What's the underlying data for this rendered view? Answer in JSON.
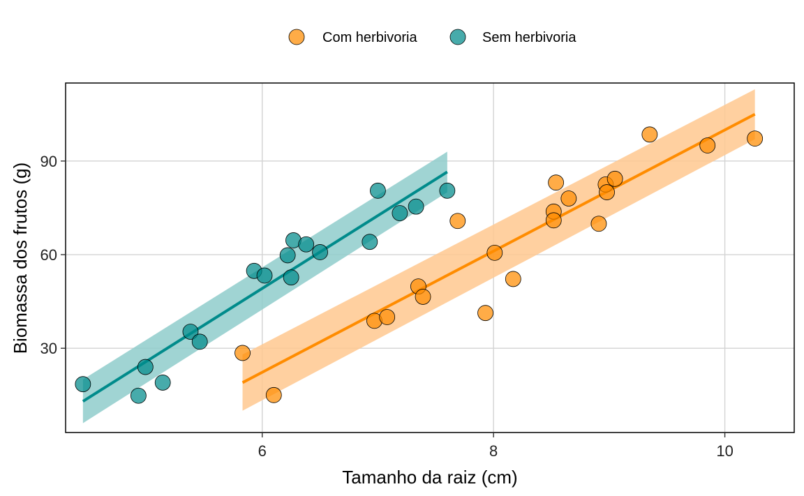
{
  "chart_data": {
    "type": "scatter",
    "title": "",
    "xlabel": "Tamanho da raiz (cm)",
    "ylabel": "Biomassa dos frutos (g)",
    "xlim": [
      4.3,
      10.6
    ],
    "ylim": [
      3,
      115
    ],
    "xticks": [
      6,
      8,
      10
    ],
    "yticks": [
      30,
      60,
      90
    ],
    "grid": true,
    "legend_position": "top",
    "series": [
      {
        "name": "Com herbivoria",
        "color": "#FF8C00",
        "points": [
          [
            5.83,
            28.5
          ],
          [
            6.1,
            15.0
          ],
          [
            6.97,
            38.8
          ],
          [
            7.08,
            40.0
          ],
          [
            7.35,
            49.8
          ],
          [
            7.39,
            46.5
          ],
          [
            7.69,
            70.8
          ],
          [
            7.93,
            41.3
          ],
          [
            8.01,
            60.6
          ],
          [
            8.17,
            52.2
          ],
          [
            8.52,
            73.8
          ],
          [
            8.52,
            71.0
          ],
          [
            8.54,
            83.1
          ],
          [
            8.65,
            78.0
          ],
          [
            8.91,
            69.9
          ],
          [
            8.97,
            82.5
          ],
          [
            8.98,
            80.0
          ],
          [
            9.05,
            84.3
          ],
          [
            9.35,
            98.5
          ],
          [
            9.85,
            95.0
          ],
          [
            10.26,
            97.2
          ]
        ],
        "fit": {
          "x": [
            5.83,
            10.26
          ],
          "y": [
            19.0,
            105.0
          ],
          "ci_lower": [
            10.0,
            97.0
          ],
          "ci_upper": [
            28.0,
            113.0
          ]
        }
      },
      {
        "name": "Sem herbivoria",
        "color": "#008B8B",
        "points": [
          [
            4.45,
            18.5
          ],
          [
            4.93,
            14.8
          ],
          [
            4.99,
            24.0
          ],
          [
            5.14,
            19.0
          ],
          [
            5.38,
            35.3
          ],
          [
            5.46,
            32.1
          ],
          [
            5.93,
            54.8
          ],
          [
            6.02,
            53.3
          ],
          [
            6.22,
            59.8
          ],
          [
            6.25,
            52.7
          ],
          [
            6.27,
            64.6
          ],
          [
            6.38,
            63.3
          ],
          [
            6.5,
            60.8
          ],
          [
            6.93,
            64.1
          ],
          [
            7.0,
            80.5
          ],
          [
            7.19,
            73.3
          ],
          [
            7.33,
            75.4
          ],
          [
            7.6,
            80.5
          ]
        ],
        "fit": {
          "x": [
            4.45,
            7.6
          ],
          "y": [
            13.0,
            86.5
          ],
          "ci_lower": [
            6.0,
            80.0
          ],
          "ci_upper": [
            20.0,
            93.0
          ]
        }
      }
    ]
  }
}
